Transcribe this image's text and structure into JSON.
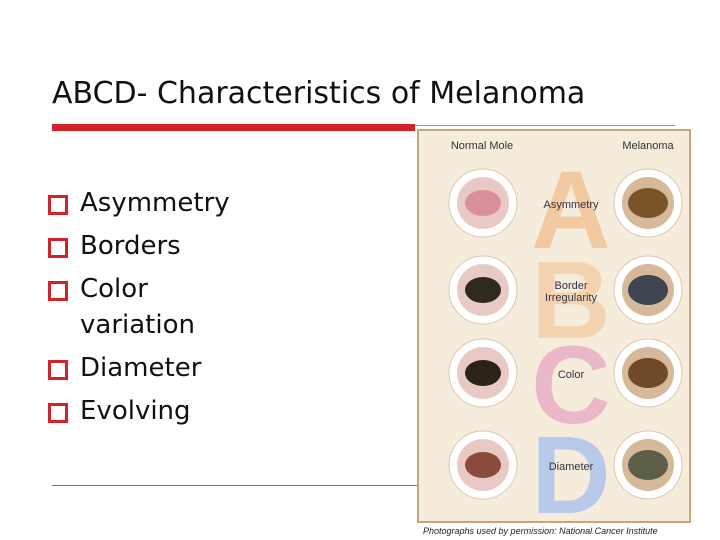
{
  "slide": {
    "title": "ABCD- Characteristics of Melanoma",
    "bullets": [
      "Asymmetry",
      "Borders",
      "Color variation",
      "Diameter",
      "Evolving"
    ]
  },
  "figure": {
    "column_headers": [
      "Normal Mole",
      "Melanoma"
    ],
    "letters": [
      "A",
      "B",
      "C",
      "D"
    ],
    "row_labels": [
      [
        "Asymmetry"
      ],
      [
        "Border",
        "Irregularity"
      ],
      [
        "Color"
      ],
      [
        "Diameter"
      ]
    ],
    "caption": "Photographs used by permission: National Cancer Institute"
  }
}
